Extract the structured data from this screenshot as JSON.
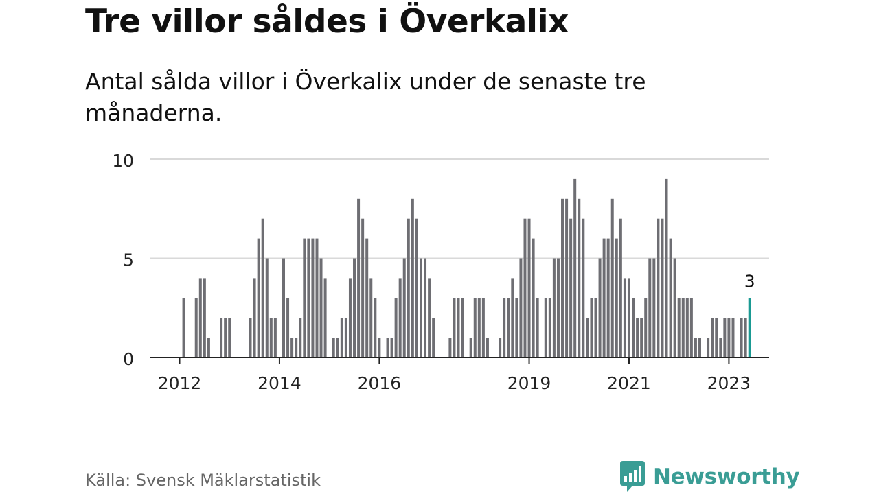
{
  "title": "Tre villor såldes i Överkalix",
  "subtitle": "Antal sålda villor i Överkalix under de senaste tre månaderna.",
  "source": "Källa: Svensk Mäklarstatistik",
  "brand": "Newsworthy",
  "colors": {
    "bar": "#6e6e73",
    "highlight": "#1a9a93",
    "grid": "#d9d9d9",
    "axis": "#222222",
    "brand": "#3a9d95"
  },
  "chart_data": {
    "type": "bar",
    "ylim": [
      0,
      10
    ],
    "yticks": [
      0,
      5,
      10
    ],
    "xticks": [
      "2012",
      "2014",
      "2016",
      "2019",
      "2021",
      "2023"
    ],
    "start": "2012-01",
    "values": [
      0,
      3,
      0,
      0,
      3,
      4,
      4,
      1,
      0,
      0,
      2,
      2,
      2,
      0,
      0,
      0,
      0,
      2,
      4,
      6,
      7,
      5,
      2,
      2,
      0,
      5,
      3,
      1,
      1,
      2,
      6,
      6,
      6,
      6,
      5,
      4,
      0,
      1,
      1,
      2,
      2,
      4,
      5,
      8,
      7,
      6,
      4,
      3,
      1,
      0,
      1,
      1,
      3,
      4,
      5,
      7,
      8,
      7,
      5,
      5,
      4,
      2,
      0,
      0,
      0,
      1,
      3,
      3,
      3,
      0,
      1,
      3,
      3,
      3,
      1,
      0,
      0,
      1,
      3,
      3,
      4,
      3,
      5,
      7,
      7,
      6,
      3,
      0,
      3,
      3,
      5,
      5,
      8,
      8,
      7,
      9,
      8,
      7,
      2,
      3,
      3,
      5,
      6,
      6,
      8,
      6,
      7,
      4,
      4,
      3,
      2,
      2,
      3,
      5,
      5,
      7,
      7,
      9,
      6,
      5,
      3,
      3,
      3,
      3,
      1,
      1,
      0,
      1,
      2,
      2,
      1,
      2,
      2,
      2,
      0,
      2,
      2,
      3
    ],
    "highlight_label": "3"
  }
}
